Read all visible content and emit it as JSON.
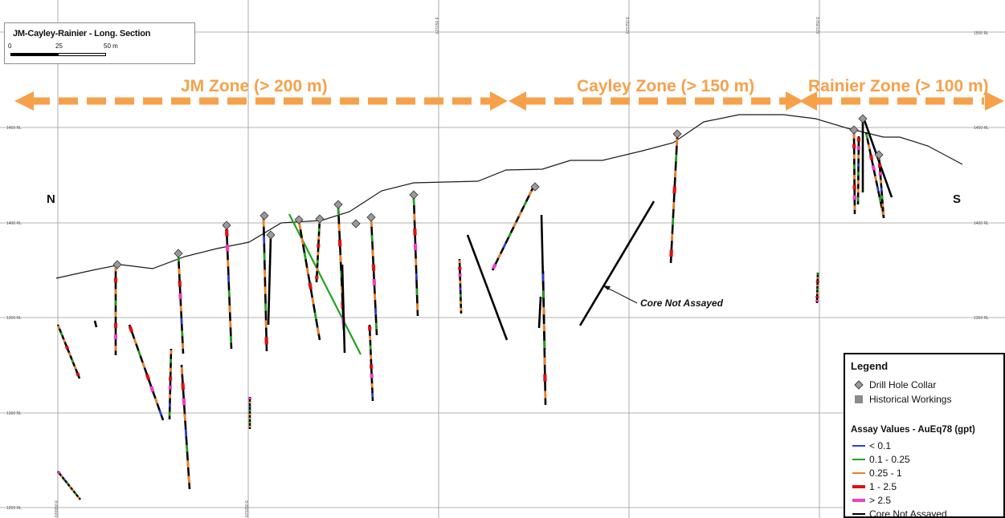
{
  "title": "JM-Cayley-Rainier - Long. Section",
  "scale": {
    "labels": [
      "0",
      "25",
      "50 m"
    ]
  },
  "zones": [
    {
      "name": "JM Zone (> 200 m)"
    },
    {
      "name": "Cayley Zone (> 150 m)"
    },
    {
      "name": "Rainier Zone (> 100 m)"
    }
  ],
  "orientation": {
    "north": "N",
    "south": "S"
  },
  "annotation": "Core Not Assayed",
  "axes": {
    "easting_ticks": [
      "620950 E",
      "621050 E",
      "621150 E",
      "621250 E",
      "621350 E",
      "1500 RL"
    ],
    "rl_ticks_left": [
      "1450 RL",
      "1400 RL",
      "1350 RL",
      "1300 RL",
      "1250 RL"
    ],
    "rl_ticks_right": [
      "1450 RL",
      "1400 RL",
      "1350 RL"
    ]
  },
  "legend": {
    "title": "Legend",
    "symbols": [
      {
        "label": "Drill Hole Collar",
        "icon": "diamond-icon"
      },
      {
        "label": "Historical Workings",
        "icon": "square-icon"
      }
    ],
    "assay_title": "Assay Values - AuEq78 (gpt)",
    "assay": [
      {
        "label": "< 0.1",
        "color": "#2b3fd6"
      },
      {
        "label": "0.1 - 0.25",
        "color": "#1fa31f"
      },
      {
        "label": "0.25 - 1",
        "color": "#f08020"
      },
      {
        "label": "1 - 2.5",
        "color": "#e01010"
      },
      {
        "label": "> 2.5",
        "color": "#ee3ec6"
      },
      {
        "label": "Core Not Assayed",
        "color": "#000000"
      }
    ]
  },
  "colors": {
    "arrow": "#f6a14a",
    "collar": "#9a9a9a",
    "grid": "#9a9a9a",
    "topo": "#1a1a1a"
  }
}
